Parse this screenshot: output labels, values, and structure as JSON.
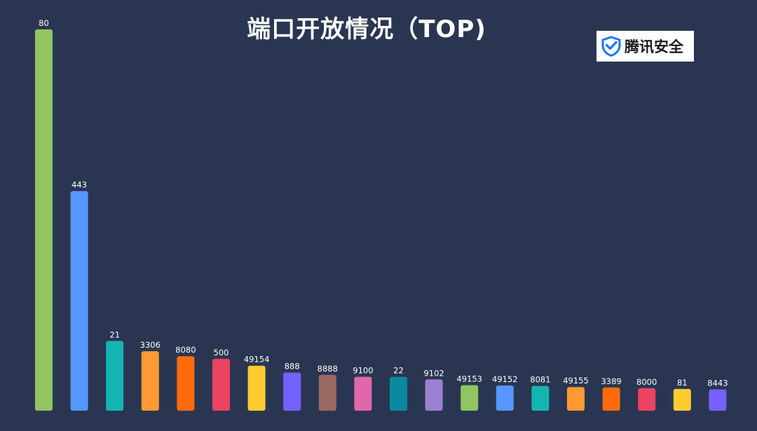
{
  "title": "端口开放情况（TOP)",
  "logo": {
    "text": "腾讯安全",
    "icon": "shield-check-icon",
    "icon_color": "#1677ff"
  },
  "colors": {
    "background": "#2a3651",
    "palette": [
      "#91c561",
      "#5596ff",
      "#14b5b0",
      "#ff9933",
      "#ff6b0a",
      "#ec4360",
      "#ffcb2f",
      "#7561ff",
      "#9a6a63",
      "#e167ab",
      "#0a8a9e",
      "#9b7fd1"
    ]
  },
  "chart_data": {
    "type": "bar",
    "title": "端口开放情况（TOP)",
    "xlabel": "",
    "ylabel": "",
    "grid": false,
    "legend": "none",
    "ylim": [
      0,
      1000
    ],
    "categories": [
      "80",
      "443",
      "21",
      "3306",
      "8080",
      "500",
      "49154",
      "888",
      "8888",
      "9100",
      "22",
      "9102",
      "49153",
      "49152",
      "8081",
      "49155",
      "3389",
      "8000",
      "81",
      "8443"
    ],
    "values": [
      1000,
      576,
      183,
      156,
      143,
      136,
      118,
      100,
      94,
      89,
      89,
      82,
      67,
      66,
      65,
      62,
      61,
      59,
      57,
      56
    ]
  }
}
